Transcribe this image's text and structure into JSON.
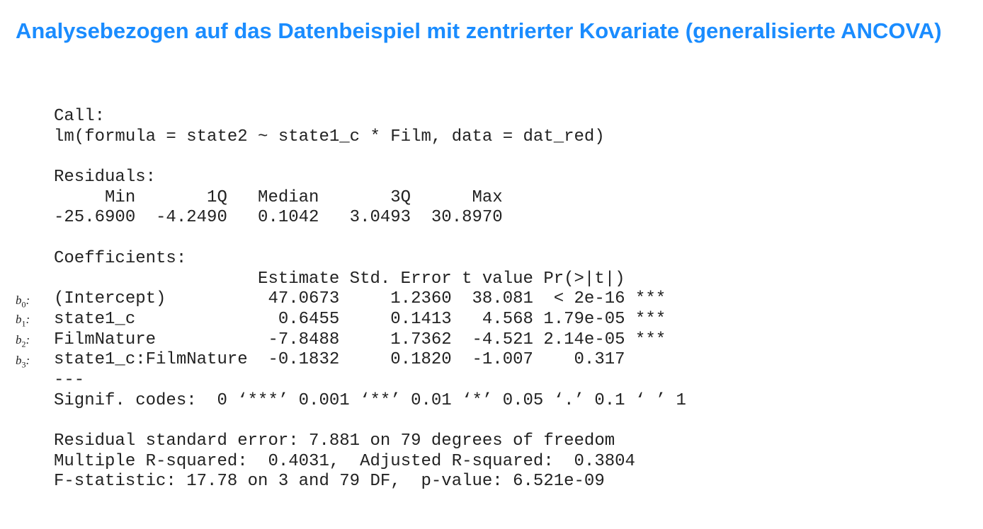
{
  "title": "Analysebezogen auf das Datenbeispiel mit zentrierter Kovariate (generalisierte ANCOVA)",
  "output_lines": [
    "Call:",
    "lm(formula = state2 ~ state1_c * Film, data = dat_red)",
    "",
    "Residuals:",
    "     Min       1Q   Median       3Q      Max ",
    "-25.6900  -4.2490   0.1042   3.0493  30.8970 ",
    "",
    "Coefficients:",
    "                    Estimate Std. Error t value Pr(>|t|)    ",
    "(Intercept)          47.0673     1.2360  38.081  < 2e-16 ***",
    "state1_c              0.6455     0.1413   4.568 1.79e-05 ***",
    "FilmNature           -7.8488     1.7362  -4.521 2.14e-05 ***",
    "state1_c:FilmNature  -0.1832     0.1820  -1.007    0.317    ",
    "---",
    "Signif. codes:  0 ‘***’ 0.001 ‘**’ 0.01 ‘*’ 0.05 ‘.’ 0.1 ‘ ’ 1",
    "",
    "Residual standard error: 7.881 on 79 degrees of freedom",
    "Multiple R-squared:  0.4031,\tAdjusted R-squared:  0.3804 ",
    "F-statistic: 17.78 on 3 and 79 DF,  p-value: 6.521e-09"
  ],
  "coef_labels": [
    {
      "letter": "b",
      "sub": "0",
      "suffix": ":"
    },
    {
      "letter": "b",
      "sub": "1",
      "suffix": ":"
    },
    {
      "letter": "b",
      "sub": "2",
      "suffix": ":"
    },
    {
      "letter": "b",
      "sub": "3",
      "suffix": ":"
    }
  ],
  "colors": {
    "title": "#1a8cff",
    "text": "#222222"
  }
}
